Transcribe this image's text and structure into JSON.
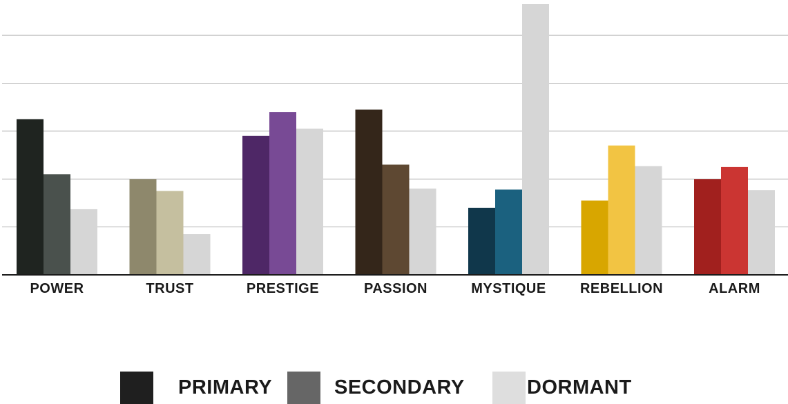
{
  "chart_data": {
    "type": "bar",
    "categories": [
      "POWER",
      "TRUST",
      "PRESTIGE",
      "PASSION",
      "MYSTIQUE",
      "REBELLION",
      "ALARM"
    ],
    "series": [
      {
        "name": "PRIMARY",
        "values": [
          3.25,
          2.0,
          2.9,
          3.45,
          1.4,
          1.55,
          2.0
        ]
      },
      {
        "name": "SECONDARY",
        "values": [
          2.1,
          1.75,
          3.4,
          2.3,
          1.78,
          2.7,
          2.25
        ]
      },
      {
        "name": "DORMANT",
        "values": [
          1.37,
          0.85,
          3.05,
          1.8,
          5.65,
          2.27,
          1.77
        ]
      }
    ],
    "colors": [
      [
        "#1f2420",
        "#4a514d",
        "#d6d6d6"
      ],
      [
        "#8e886c",
        "#c5bf9f",
        "#d6d6d6"
      ],
      [
        "#4e2766",
        "#784a95",
        "#d6d6d6"
      ],
      [
        "#34261a",
        "#5e4832",
        "#d6d6d6"
      ],
      [
        "#10374b",
        "#1b617f",
        "#d6d6d6"
      ],
      [
        "#d8a600",
        "#f2c443",
        "#d6d6d6"
      ],
      [
        "#a1201e",
        "#cb3532",
        "#d6d6d6"
      ]
    ],
    "ylim": [
      0,
      5.65
    ],
    "grid": true,
    "legend_position": "bottom-center"
  },
  "legend": {
    "items": [
      {
        "label": "PRIMARY",
        "color": "#1f1f1f"
      },
      {
        "label": "SECONDARY",
        "color": "#666666"
      },
      {
        "label": "DORMANT",
        "color": "#dedede"
      }
    ]
  }
}
